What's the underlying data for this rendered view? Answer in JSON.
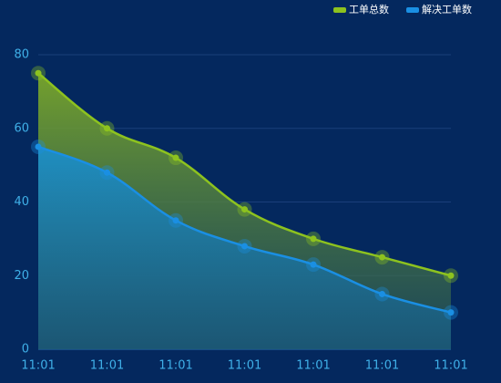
{
  "chart_data": {
    "type": "area",
    "categories": [
      "11:01",
      "11:01",
      "11:01",
      "11:01",
      "11:01",
      "11:01",
      "11:01"
    ],
    "series": [
      {
        "name": "工单总数",
        "color": "#8dc21f",
        "values": [
          75,
          60,
          52,
          38,
          30,
          25,
          20
        ]
      },
      {
        "name": "解决工单数",
        "color": "#1a8fe3",
        "values": [
          55,
          48,
          35,
          28,
          23,
          15,
          10
        ]
      }
    ],
    "ylim": [
      0,
      80
    ],
    "yticks": [
      0,
      20,
      40,
      60,
      80
    ],
    "grid": true,
    "legend": "top-right"
  }
}
